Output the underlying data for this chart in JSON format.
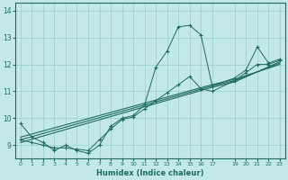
{
  "xlabel": "Humidex (Indice chaleur)",
  "bg_color": "#c2e8e8",
  "line_color": "#1e6b60",
  "grid_color": "#98d0cc",
  "xlim": [
    -0.5,
    23.5
  ],
  "ylim": [
    8.5,
    14.3
  ],
  "yticks": [
    9,
    10,
    11,
    12,
    13,
    14
  ],
  "xticks": [
    0,
    1,
    2,
    3,
    4,
    5,
    6,
    7,
    8,
    9,
    10,
    11,
    12,
    13,
    14,
    15,
    16,
    17,
    19,
    20,
    21,
    22,
    23
  ],
  "lines": [
    {
      "x": [
        0,
        1,
        2,
        3,
        4,
        5,
        6,
        7,
        8,
        9,
        10,
        11,
        12,
        13,
        14,
        15,
        16,
        17,
        19,
        20,
        21,
        22,
        23
      ],
      "y": [
        9.8,
        9.3,
        9.1,
        8.8,
        9.0,
        8.8,
        8.7,
        9.0,
        9.7,
        10.0,
        10.1,
        10.5,
        11.9,
        12.5,
        13.4,
        13.45,
        13.1,
        11.2,
        11.5,
        11.8,
        12.65,
        12.05,
        12.2
      ],
      "marker": true
    },
    {
      "x": [
        0,
        1,
        2,
        3,
        4,
        5,
        6,
        7,
        8,
        9,
        10,
        11,
        12,
        13,
        14,
        15,
        16,
        17,
        19,
        20,
        21,
        22,
        23
      ],
      "y": [
        9.2,
        9.1,
        9.0,
        8.9,
        8.9,
        8.85,
        8.8,
        9.2,
        9.6,
        9.95,
        10.05,
        10.35,
        10.65,
        10.95,
        11.25,
        11.55,
        11.1,
        11.0,
        11.4,
        11.7,
        12.0,
        12.0,
        12.15
      ],
      "marker": true
    },
    {
      "x": [
        0,
        17,
        19,
        23
      ],
      "y": [
        9.1,
        11.15,
        11.35,
        12.1
      ],
      "marker": false
    },
    {
      "x": [
        0,
        17,
        19,
        23
      ],
      "y": [
        9.2,
        11.2,
        11.4,
        12.05
      ],
      "marker": false
    },
    {
      "x": [
        0,
        17,
        19,
        23
      ],
      "y": [
        9.3,
        11.25,
        11.45,
        12.0
      ],
      "marker": false
    }
  ]
}
